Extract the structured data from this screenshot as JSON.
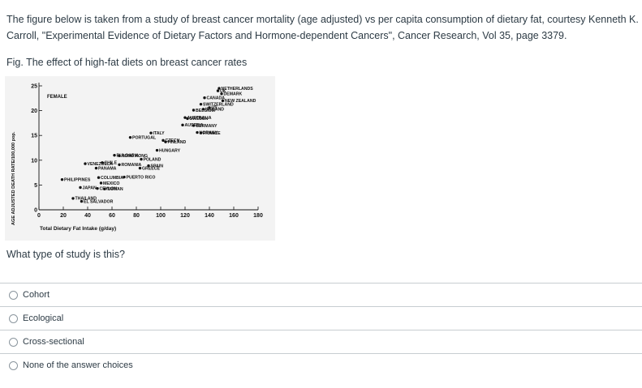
{
  "intro_text": "The figure below is taken from a study of breast cancer mortality (age adjusted) vs per capita consumption of dietary fat, courtesy Kenneth K. Carroll, \"Experimental Evidence of Dietary Factors and Hormone-dependent Cancers\", Cancer Research, Vol 35, page 3379.",
  "figure_caption": "Fig. The effect of high-fat diets on breast cancer rates",
  "question": "What type of study is this?",
  "answers": [
    {
      "label": "Cohort",
      "selected": false
    },
    {
      "label": "Ecological",
      "selected": false
    },
    {
      "label": "Cross-sectional",
      "selected": false
    },
    {
      "label": "None of the answer choices",
      "selected": false
    }
  ],
  "chart_data": {
    "type": "scatter",
    "panel_label": "FEMALE",
    "xlabel": "Total Dietary Fat Intake (g/day)",
    "ylabel": "AGE ADJUSTED DEATH RATE/100,000 pop.",
    "xlim": [
      0,
      180
    ],
    "ylim": [
      0,
      25
    ],
    "x_ticks": [
      0,
      20,
      40,
      60,
      80,
      100,
      120,
      140,
      160,
      180
    ],
    "y_ticks": [
      0,
      5,
      10,
      15,
      20,
      25
    ],
    "points": [
      {
        "label": "NETHERLANDS",
        "x": 148,
        "y": 24.5
      },
      {
        "label": "UK",
        "x": 147,
        "y": 24.0
      },
      {
        "label": "DEMARK",
        "x": 150,
        "y": 23.4
      },
      {
        "label": "NEW ZEALAND",
        "x": 151,
        "y": 22.0
      },
      {
        "label": "CANADA",
        "x": 136,
        "y": 22.6
      },
      {
        "label": "SWITZERLAND",
        "x": 133,
        "y": 21.3
      },
      {
        "label": "IRELAND",
        "x": 135,
        "y": 20.3
      },
      {
        "label": "US",
        "x": 140,
        "y": 20.6
      },
      {
        "label": "BELGIUM",
        "x": 127,
        "y": 20.1
      },
      {
        "label": "AUSTRALIA",
        "x": 120,
        "y": 18.6
      },
      {
        "label": "SWEDEN",
        "x": 122,
        "y": 18.4
      },
      {
        "label": "AUSTRIA",
        "x": 118,
        "y": 17.1
      },
      {
        "label": "GERMANY",
        "x": 127,
        "y": 17.0
      },
      {
        "label": "NORWAY",
        "x": 130,
        "y": 15.6
      },
      {
        "label": "FRANCE",
        "x": 133,
        "y": 15.5
      },
      {
        "label": "ITALY",
        "x": 92,
        "y": 15.5
      },
      {
        "label": "CZECH",
        "x": 102,
        "y": 14.0
      },
      {
        "label": "FINLAND",
        "x": 104,
        "y": 13.7
      },
      {
        "label": "PORTUGAL",
        "x": 75,
        "y": 14.6
      },
      {
        "label": "HUNGARY",
        "x": 97,
        "y": 12.0
      },
      {
        "label": "BULGARIA",
        "x": 62,
        "y": 11.0
      },
      {
        "label": "HONG KONG",
        "x": 66,
        "y": 10.9
      },
      {
        "label": "POLAND",
        "x": 84,
        "y": 10.2
      },
      {
        "label": "CHILE",
        "x": 52,
        "y": 9.5
      },
      {
        "label": "VENEZUELA",
        "x": 38,
        "y": 9.3
      },
      {
        "label": "ROMANIA",
        "x": 66,
        "y": 9.1
      },
      {
        "label": "SPAIN",
        "x": 90,
        "y": 8.9
      },
      {
        "label": "GREECE",
        "x": 83,
        "y": 8.4
      },
      {
        "label": "PANAMA",
        "x": 47,
        "y": 8.4
      },
      {
        "label": "PHILIPPINES",
        "x": 19,
        "y": 6.1
      },
      {
        "label": "COLUMBIA",
        "x": 49,
        "y": 6.5
      },
      {
        "label": "PUERTO RICO",
        "x": 70,
        "y": 6.6
      },
      {
        "label": "MEXICO",
        "x": 51,
        "y": 5.4
      },
      {
        "label": "JAPAN",
        "x": 34,
        "y": 4.5
      },
      {
        "label": "CEYLON",
        "x": 48,
        "y": 4.3
      },
      {
        "label": "TAIWAN",
        "x": 54,
        "y": 4.2
      },
      {
        "label": "THAILAND",
        "x": 28,
        "y": 2.3
      },
      {
        "label": "EL SALVADOR",
        "x": 35,
        "y": 1.7
      }
    ]
  }
}
